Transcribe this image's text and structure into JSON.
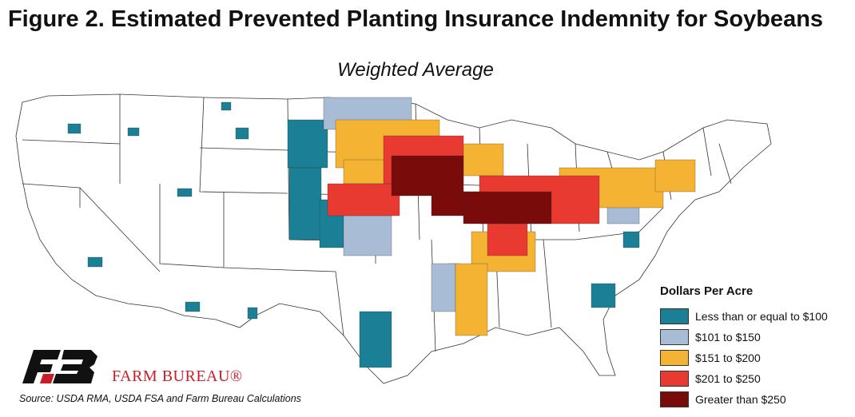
{
  "title": "Figure 2. Estimated Prevented Planting Insurance Indemnity for Soybeans",
  "subtitle": "Weighted Average",
  "legend": {
    "title": "Dollars Per Acre",
    "items": [
      {
        "label": "Less than or equal to $100",
        "color": "#1b7f95"
      },
      {
        "label": "$101 to $150",
        "color": "#a9bcd6"
      },
      {
        "label": "$151 to $200",
        "color": "#f5b333"
      },
      {
        "label": "$201 to $250",
        "color": "#e83a30"
      },
      {
        "label": "Greater than $250",
        "color": "#7a0b0b"
      }
    ]
  },
  "brand": "FARM BUREAU®",
  "source": "Source: USDA RMA, USDA FSA and Farm Bureau Calculations",
  "map_style": {
    "state_fill": "#ffffff",
    "state_border": "#333333",
    "map_type": "county choropleth of the contiguous United States"
  }
}
